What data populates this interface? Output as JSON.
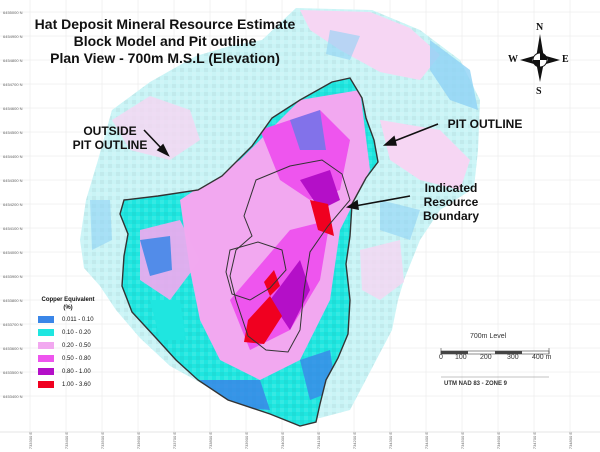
{
  "title": {
    "line1": "Hat Deposit Mineral Resource Estimate",
    "line2": "Block Model and Pit outline",
    "line3": "Plan View - 700m M.S.L (Elevation)"
  },
  "labels": {
    "outside_line1": "OUTSIDE",
    "outside_line2": "PIT OUTLINE",
    "pit_outline": "PIT OUTLINE",
    "indicated_line1": "Indicated",
    "indicated_line2": "Resource",
    "indicated_line3": "Boundary"
  },
  "legend": {
    "title_line1": "Copper Equivalent",
    "title_line2": "(%)",
    "items": [
      {
        "label": "0.011 - 0.10",
        "color": "#3a86e8"
      },
      {
        "label": "0.10 - 0.20",
        "color": "#1fe6e0"
      },
      {
        "label": "0.20 - 0.50",
        "color": "#f2a8f0"
      },
      {
        "label": "0.50 - 0.80",
        "color": "#ee55ee"
      },
      {
        "label": "0.80 - 1.00",
        "color": "#b40fc8"
      },
      {
        "label": "1.00 - 3.60",
        "color": "#f00020"
      }
    ]
  },
  "scale": {
    "level": "700m Level",
    "ticks": [
      "0",
      "100",
      "200",
      "300",
      "400 m"
    ],
    "datum": "UTM NAD 83 - ZONE 9"
  },
  "north_arrow": {
    "n": "N",
    "s": "S",
    "e": "E",
    "w": "W",
    "icon": "compass-rose-icon"
  },
  "grid": {
    "northings": [
      "6455000 N",
      "6454900 N",
      "6454800 N",
      "6454700 N",
      "6454600 N",
      "6454500 N",
      "6454400 N",
      "6454300 N",
      "6454200 N",
      "6454100 N",
      "6454000 N",
      "6453900 N",
      "6453800 N",
      "6453700 N",
      "6453600 N",
      "6453500 N",
      "6453400 N"
    ],
    "eastings": [
      "733300 E",
      "733400 E",
      "733500 E",
      "733600 E",
      "733700 E",
      "733800 E",
      "733900 E",
      "734000 E",
      "734100 E",
      "734200 E",
      "734300 E",
      "734400 E",
      "734500 E",
      "734600 E",
      "734700 E",
      "734800 E"
    ]
  },
  "colors": {
    "outside_pale_cyan": "#c9f4f6",
    "outside_pale_pink": "#f6d6f3",
    "outline": "#333333"
  }
}
